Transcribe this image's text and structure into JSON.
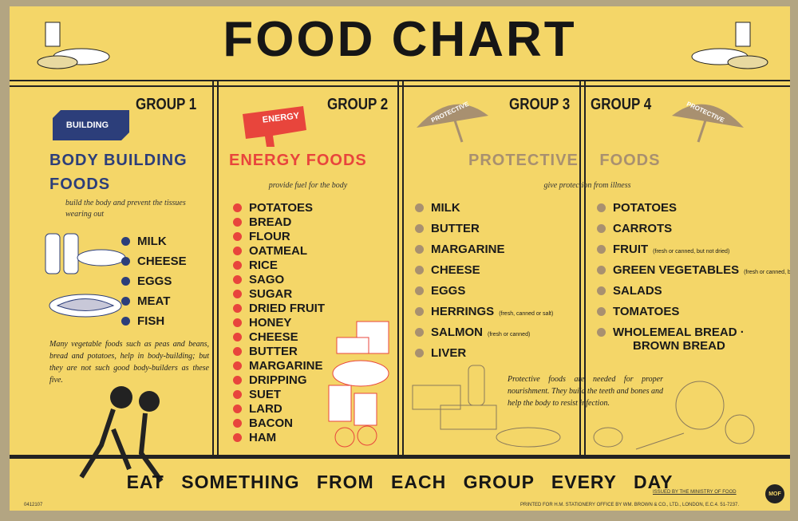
{
  "header": {
    "title": "FOOD CHART"
  },
  "groups": [
    {
      "label": "GROUP 1",
      "badge": "BUILDING",
      "heading": "BODY BUILDING FOODS",
      "description": "build the body and prevent the tissues wearing out",
      "items": [
        {
          "name": "MILK"
        },
        {
          "name": "CHEESE"
        },
        {
          "name": "EGGS"
        },
        {
          "name": "MEAT"
        },
        {
          "name": "FISH"
        }
      ],
      "note": "Many vegetable foods such as peas and beans, bread and potatoes, help in body-building; but they are not such good body-builders as these five."
    },
    {
      "label": "GROUP 2",
      "badge": "ENERGY",
      "heading": "ENERGY FOODS",
      "description": "provide fuel for the body",
      "items": [
        {
          "name": "POTATOES"
        },
        {
          "name": "BREAD"
        },
        {
          "name": "FLOUR"
        },
        {
          "name": "OATMEAL"
        },
        {
          "name": "RICE"
        },
        {
          "name": "SAGO"
        },
        {
          "name": "SUGAR"
        },
        {
          "name": "DRIED FRUIT"
        },
        {
          "name": "HONEY"
        },
        {
          "name": "CHEESE"
        },
        {
          "name": "BUTTER"
        },
        {
          "name": "MARGARINE"
        },
        {
          "name": "DRIPPING"
        },
        {
          "name": "SUET"
        },
        {
          "name": "LARD"
        },
        {
          "name": "BACON"
        },
        {
          "name": "HAM"
        }
      ]
    },
    {
      "label": "GROUP 3",
      "badge": "PROTECTIVE",
      "items": [
        {
          "name": "MILK"
        },
        {
          "name": "BUTTER"
        },
        {
          "name": "MARGARINE"
        },
        {
          "name": "CHEESE"
        },
        {
          "name": "EGGS"
        },
        {
          "name": "HERRINGS",
          "note": "(fresh, canned or salt)"
        },
        {
          "name": "SALMON",
          "note": "(fresh or canned)"
        },
        {
          "name": "LIVER"
        }
      ]
    },
    {
      "label": "GROUP 4",
      "badge": "PROTECTIVE",
      "items": [
        {
          "name": "POTATOES"
        },
        {
          "name": "CARROTS"
        },
        {
          "name": "FRUIT",
          "note": "(fresh or canned, but not dried)"
        },
        {
          "name": "GREEN VEGETABLES",
          "note": "(fresh or canned, but not dried)"
        },
        {
          "name": "SALADS"
        },
        {
          "name": "TOMATOES"
        },
        {
          "name": "WHOLEMEAL BREAD ·",
          "line2": "BROWN BREAD"
        }
      ]
    }
  ],
  "protective": {
    "heading": "PROTECTIVE FOODS",
    "description": "give protection from illness",
    "note": "Protective foods are needed for proper nourishment. They build the teeth and bones and help the body to resist infection."
  },
  "footer": {
    "slogan": "EAT SOMETHING FROM EACH GROUP EVERY DAY",
    "code": "0412107",
    "issued": "ISSUED BY THE MINISTRY OF FOOD",
    "logo": "MOF",
    "printer": "PRINTED FOR H.M. STATIONERY OFFICE BY WM. BROWN & CO., LTD., LONDON, E.C.4.   51-7237."
  }
}
